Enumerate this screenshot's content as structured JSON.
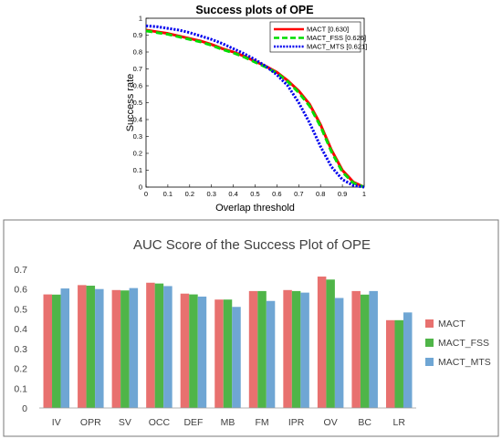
{
  "chart_data": [
    {
      "type": "line",
      "title": "Success plots of OPE",
      "xlabel": "Overlap threshold",
      "ylabel": "Success rate",
      "xlim": [
        0,
        1
      ],
      "ylim": [
        0,
        1
      ],
      "xticks": [
        "0",
        "0.1",
        "0.2",
        "0.3",
        "0.4",
        "0.5",
        "0.6",
        "0.7",
        "0.8",
        "0.9",
        "1"
      ],
      "yticks": [
        "0",
        "0.1",
        "0.2",
        "0.3",
        "0.4",
        "0.5",
        "0.6",
        "0.7",
        "0.8",
        "0.9",
        "1"
      ],
      "grid": false,
      "legend_position": "top-right",
      "x": [
        0,
        0.05,
        0.1,
        0.15,
        0.2,
        0.25,
        0.3,
        0.35,
        0.4,
        0.45,
        0.5,
        0.55,
        0.6,
        0.65,
        0.7,
        0.75,
        0.8,
        0.85,
        0.9,
        0.95,
        1.0
      ],
      "series": [
        {
          "name": "MACT [0.630]",
          "color": "#ff0000",
          "style": "solid",
          "values": [
            0.93,
            0.92,
            0.91,
            0.895,
            0.88,
            0.865,
            0.845,
            0.82,
            0.8,
            0.775,
            0.745,
            0.715,
            0.68,
            0.63,
            0.57,
            0.49,
            0.37,
            0.22,
            0.1,
            0.03,
            0.0
          ]
        },
        {
          "name": "MACT_FSS [0.626]",
          "color": "#00dd00",
          "style": "dashed",
          "values": [
            0.925,
            0.915,
            0.905,
            0.89,
            0.875,
            0.86,
            0.84,
            0.815,
            0.795,
            0.77,
            0.74,
            0.71,
            0.675,
            0.625,
            0.56,
            0.48,
            0.36,
            0.21,
            0.09,
            0.025,
            0.0
          ]
        },
        {
          "name": "MACT_MTS [0.621]",
          "color": "#0000ee",
          "style": "dotted",
          "values": [
            0.955,
            0.95,
            0.94,
            0.93,
            0.915,
            0.895,
            0.875,
            0.85,
            0.82,
            0.79,
            0.755,
            0.715,
            0.665,
            0.6,
            0.5,
            0.38,
            0.24,
            0.12,
            0.045,
            0.01,
            0.0
          ]
        }
      ]
    },
    {
      "type": "bar",
      "title": "AUC Score of the Success Plot of OPE",
      "categories": [
        "IV",
        "OPR",
        "SV",
        "OCC",
        "DEF",
        "MB",
        "FM",
        "IPR",
        "OV",
        "BC",
        "LR"
      ],
      "ylim": [
        0,
        0.7
      ],
      "yticks": [
        "0",
        "0.1",
        "0.2",
        "0.3",
        "0.4",
        "0.5",
        "0.6",
        "0.7"
      ],
      "grid": false,
      "legend_position": "right",
      "series": [
        {
          "name": "MACT",
          "color": "#e8716f",
          "values": [
            0.573,
            0.62,
            0.595,
            0.632,
            0.577,
            0.547,
            0.59,
            0.595,
            0.663,
            0.59,
            0.443
          ]
        },
        {
          "name": "MACT_FSS",
          "color": "#4fb548",
          "values": [
            0.572,
            0.617,
            0.593,
            0.628,
            0.573,
            0.547,
            0.59,
            0.59,
            0.648,
            0.572,
            0.443
          ]
        },
        {
          "name": "MACT_MTS",
          "color": "#6fa6d4",
          "values": [
            0.603,
            0.6,
            0.605,
            0.615,
            0.562,
            0.51,
            0.54,
            0.582,
            0.555,
            0.59,
            0.482
          ]
        }
      ]
    }
  ]
}
